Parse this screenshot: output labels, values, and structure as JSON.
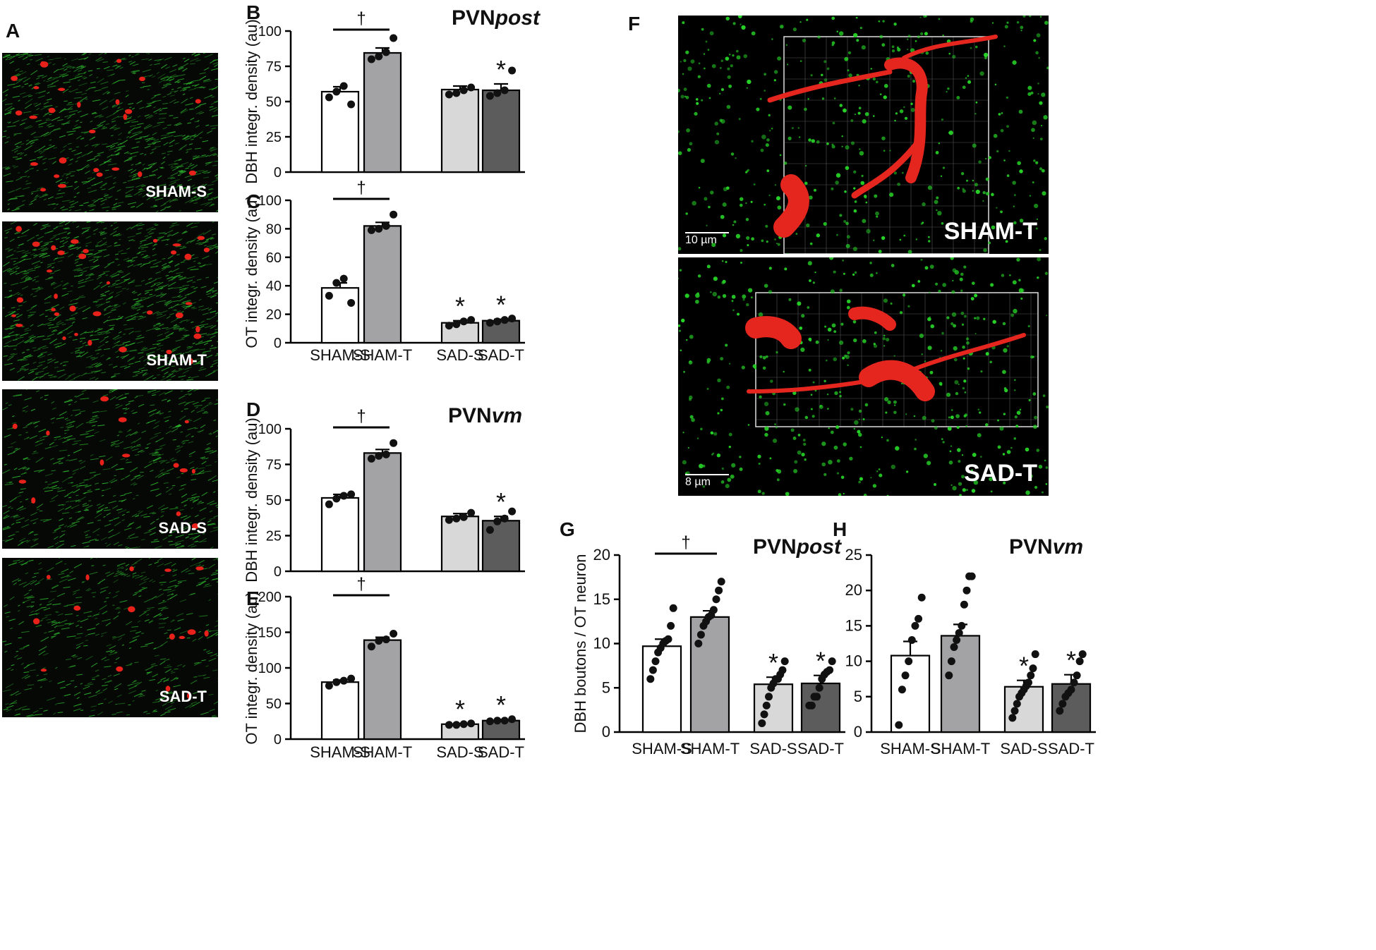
{
  "panel_letters": {
    "A": "A",
    "B": "B",
    "C": "C",
    "D": "D",
    "E": "E",
    "F": "F",
    "G": "G",
    "H": "H"
  },
  "micrographs": [
    {
      "label": "SHAM-S"
    },
    {
      "label": "SHAM-T"
    },
    {
      "label": "SAD-S"
    },
    {
      "label": "SAD-T"
    }
  ],
  "renders": [
    {
      "label": "SHAM-T",
      "scale": "10 µm"
    },
    {
      "label": "SAD-T",
      "scale": "8 µm"
    }
  ],
  "colors": {
    "SHAM-S": "#ffffff",
    "SHAM-T": "#a3a3a6",
    "SAD-S": "#d8d8d8",
    "SAD-T": "#5c5c5c",
    "neuron": "#e8211b",
    "fiber": "#2fc22f"
  },
  "chart_data": [
    {
      "id": "B",
      "type": "bar",
      "title_main": "PVN",
      "title_italic": "post",
      "ylabel": "DBH integr. density (au)",
      "ylim": [
        0,
        100
      ],
      "yticks": [
        0,
        25,
        50,
        75,
        100
      ],
      "categories": [
        "SHAM-S",
        "SHAM-T",
        "SAD-S",
        "SAD-T"
      ],
      "show_categories": false,
      "values": [
        57,
        84.5,
        58.5,
        58
      ],
      "sem": [
        3.5,
        3.5,
        2.5,
        4.5
      ],
      "points": [
        [
          53,
          57,
          61,
          48
        ],
        [
          80,
          82,
          85,
          95
        ],
        [
          55,
          56,
          58,
          60
        ],
        [
          54,
          56,
          58,
          72
        ]
      ],
      "dagger": "†",
      "stars": [
        false,
        false,
        false,
        true
      ],
      "star": "*"
    },
    {
      "id": "C",
      "type": "bar",
      "title_main": "",
      "title_italic": "",
      "ylabel": "OT integr. density (au)",
      "ylim": [
        0,
        100
      ],
      "yticks": [
        0,
        20,
        40,
        60,
        80,
        100
      ],
      "categories": [
        "SHAM-S",
        "SHAM-T",
        "SAD-S",
        "SAD-T"
      ],
      "show_categories": true,
      "values": [
        38.5,
        82,
        14,
        15.5
      ],
      "sem": [
        3.5,
        2.5,
        1.5,
        1
      ],
      "points": [
        [
          33,
          42,
          45,
          28
        ],
        [
          79,
          80,
          82,
          90
        ],
        [
          12,
          13,
          15,
          16
        ],
        [
          14,
          15,
          16,
          17
        ]
      ],
      "dagger": "†",
      "stars": [
        false,
        false,
        true,
        true
      ],
      "star": "*"
    },
    {
      "id": "D",
      "type": "bar",
      "title_main": "PVN",
      "title_italic": "vm",
      "ylabel": "DBH integr. density (au)",
      "ylim": [
        0,
        100
      ],
      "yticks": [
        0,
        25,
        50,
        75,
        100
      ],
      "categories": [
        "SHAM-S",
        "SHAM-T",
        "SAD-S",
        "SAD-T"
      ],
      "show_categories": false,
      "values": [
        51.5,
        83,
        38.5,
        35.5
      ],
      "sem": [
        2.5,
        2.5,
        2,
        3
      ],
      "points": [
        [
          47,
          51,
          53,
          54
        ],
        [
          79,
          81,
          82,
          90
        ],
        [
          36,
          37,
          38,
          41
        ],
        [
          29,
          35,
          37,
          42
        ]
      ],
      "dagger": "†",
      "stars": [
        false,
        false,
        false,
        true
      ],
      "star": "*"
    },
    {
      "id": "E",
      "type": "bar",
      "title_main": "",
      "title_italic": "",
      "ylabel": "OT integr. density (au)",
      "ylim": [
        0,
        200
      ],
      "yticks": [
        0,
        50,
        100,
        150,
        200
      ],
      "categories": [
        "SHAM-S",
        "SHAM-T",
        "SAD-S",
        "SAD-T"
      ],
      "show_categories": true,
      "values": [
        80,
        139,
        21,
        26
      ],
      "sem": [
        3,
        4,
        1,
        1.5
      ],
      "points": [
        [
          75,
          80,
          82,
          85
        ],
        [
          130,
          138,
          140,
          148
        ],
        [
          20,
          20,
          21,
          22
        ],
        [
          25,
          26,
          26,
          28
        ]
      ],
      "dagger": "†",
      "stars": [
        false,
        false,
        true,
        true
      ],
      "star": "*"
    },
    {
      "id": "G",
      "type": "bar",
      "title_main": "PVN",
      "title_italic": "post",
      "ylabel": "DBH boutons / OT neuron",
      "ylim": [
        0,
        20
      ],
      "yticks": [
        0,
        5,
        10,
        15,
        20
      ],
      "categories": [
        "SHAM-S",
        "SHAM-T",
        "SAD-S",
        "SAD-T"
      ],
      "show_categories": true,
      "values": [
        9.7,
        13,
        5.4,
        5.5
      ],
      "sem": [
        0.8,
        0.7,
        0.8,
        0.9
      ],
      "points": [
        [
          6,
          7,
          8,
          9,
          9.5,
          10,
          10.3,
          10.5,
          12,
          14
        ],
        [
          10,
          11,
          12,
          12.5,
          13,
          13.2,
          13.8,
          15,
          16,
          17
        ],
        [
          1,
          2,
          3,
          4,
          5,
          5.5,
          6,
          6,
          6.5,
          7,
          8
        ],
        [
          3,
          3,
          4,
          4,
          5,
          6,
          6.5,
          6.8,
          7,
          8
        ]
      ],
      "dagger": "†",
      "stars": [
        false,
        false,
        true,
        true
      ],
      "star": "*"
    },
    {
      "id": "H",
      "type": "bar",
      "title_main": "PVN",
      "title_italic": "vm",
      "ylabel": "",
      "ylim": [
        0,
        25
      ],
      "yticks": [
        0,
        5,
        10,
        15,
        20,
        25
      ],
      "categories": [
        "SHAM-S",
        "SHAM-T",
        "SAD-S",
        "SAD-T"
      ],
      "show_categories": true,
      "values": [
        10.8,
        13.6,
        6.4,
        6.8
      ],
      "sem": [
        2,
        1.6,
        0.9,
        1.3
      ],
      "points": [
        [
          1,
          6,
          8,
          10,
          13,
          15,
          16,
          19
        ],
        [
          8,
          10,
          12,
          13,
          14,
          15,
          18,
          20,
          22,
          22
        ],
        [
          2,
          3,
          4,
          5,
          5.5,
          6,
          6.5,
          7,
          8,
          9,
          11
        ],
        [
          3,
          4,
          5,
          5.5,
          6,
          7,
          8,
          10,
          11
        ]
      ],
      "dagger": "",
      "stars": [
        false,
        false,
        true,
        true
      ],
      "star": "*"
    }
  ]
}
